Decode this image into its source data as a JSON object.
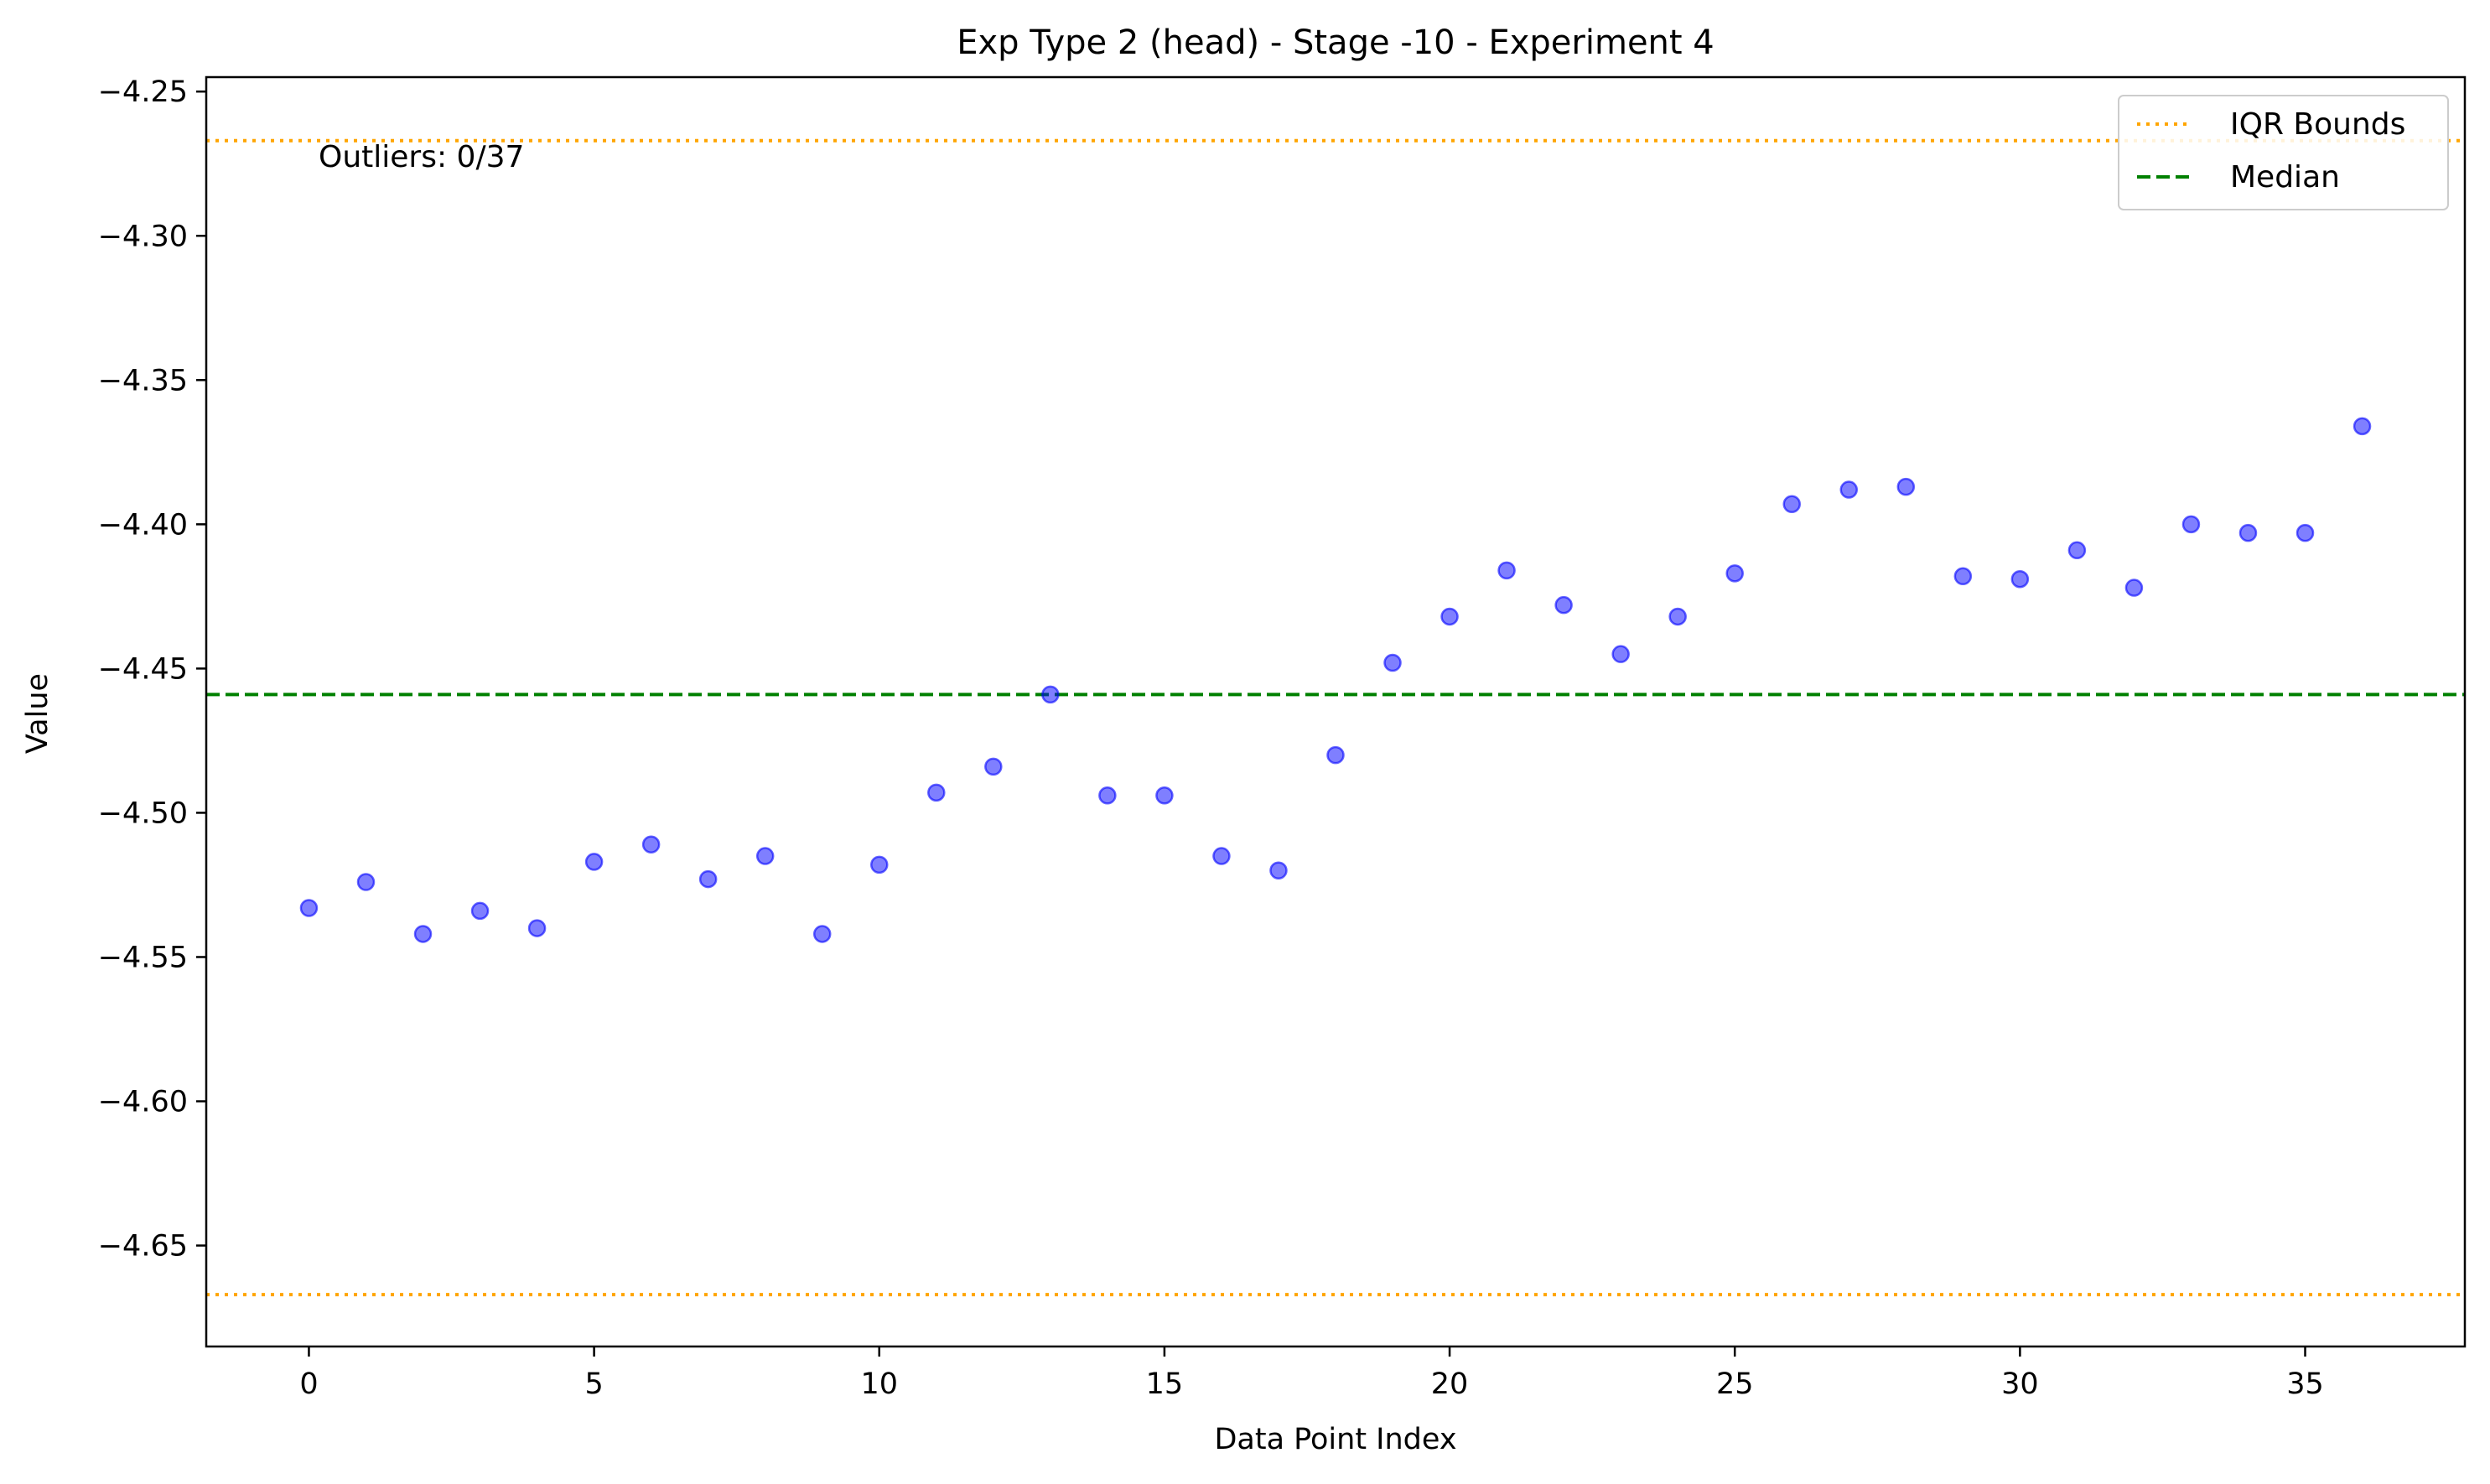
{
  "chart_data": {
    "type": "scatter",
    "title": "Exp Type 2 (head) - Stage -10 - Experiment 4",
    "xlabel": "Data Point Index",
    "ylabel": "Value",
    "xlim": [
      -1.8,
      37.8
    ],
    "ylim": [
      -4.685,
      -4.245
    ],
    "x_ticks": [
      0,
      5,
      10,
      15,
      20,
      25,
      30,
      35
    ],
    "y_ticks": [
      -4.65,
      -4.6,
      -4.55,
      -4.5,
      -4.45,
      -4.4,
      -4.35,
      -4.3,
      -4.25
    ],
    "x_tick_labels": [
      "0",
      "5",
      "10",
      "15",
      "20",
      "25",
      "30",
      "35"
    ],
    "y_tick_labels": [
      "−4.65",
      "−4.60",
      "−4.55",
      "−4.50",
      "−4.45",
      "−4.40",
      "−4.35",
      "−4.30",
      "−4.25"
    ],
    "grid": false,
    "series": [
      {
        "color": "#0000ff",
        "x": [
          0,
          1,
          2,
          3,
          4,
          5,
          6,
          7,
          8,
          9,
          10,
          11,
          12,
          13,
          14,
          15,
          16,
          17,
          18,
          19,
          20,
          21,
          22,
          23,
          24,
          25,
          26,
          27,
          28,
          29,
          30,
          31,
          32,
          33,
          34,
          35,
          36
        ],
        "y": [
          -4.533,
          -4.524,
          -4.542,
          -4.534,
          -4.54,
          -4.517,
          -4.511,
          -4.523,
          -4.515,
          -4.542,
          -4.518,
          -4.493,
          -4.484,
          -4.459,
          -4.494,
          -4.494,
          -4.515,
          -4.52,
          -4.48,
          -4.448,
          -4.432,
          -4.416,
          -4.428,
          -4.445,
          -4.432,
          -4.417,
          -4.393,
          -4.388,
          -4.387,
          -4.418,
          -4.419,
          -4.409,
          -4.422,
          -4.4,
          -4.403,
          -4.403,
          -4.366
        ]
      }
    ],
    "reference_lines": [
      {
        "name": "IQR Bounds",
        "y": -4.267,
        "style": "dotted",
        "color": "#ffa500"
      },
      {
        "name": "IQR Bounds",
        "y": -4.667,
        "style": "dotted",
        "color": "#ffa500"
      },
      {
        "name": "Median",
        "y": -4.459,
        "style": "dashed",
        "color": "#008000"
      }
    ],
    "legend": {
      "placement": "top-right",
      "entries": [
        {
          "label": "IQR Bounds",
          "style": "dotted",
          "color": "#ffa500"
        },
        {
          "label": "Median",
          "style": "dashed",
          "color": "#008000"
        }
      ]
    },
    "annotation": "Outliers: 0/37"
  }
}
